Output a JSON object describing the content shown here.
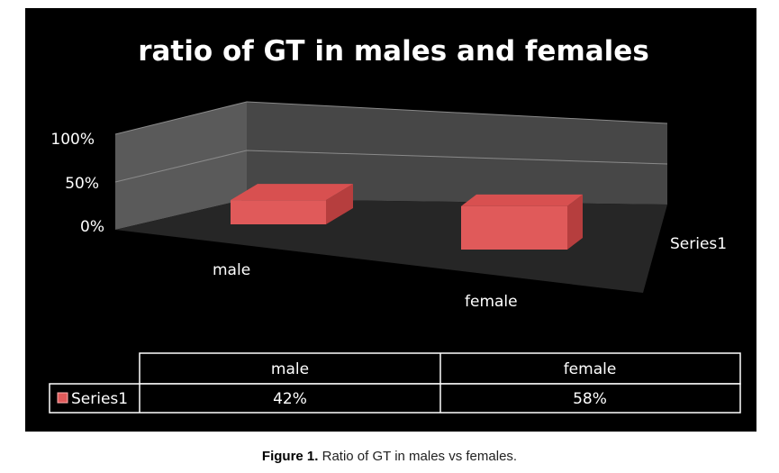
{
  "chart_data": {
    "type": "bar",
    "title": "ratio of GT in males and females",
    "categories": [
      "male",
      "female"
    ],
    "series": [
      {
        "name": "Series1",
        "values": [
          0.42,
          0.58
        ],
        "value_labels": [
          "42%",
          "58%"
        ],
        "color": "#e05a5a"
      }
    ],
    "ylim": [
      0,
      1
    ],
    "yticks": [
      {
        "value": 0,
        "label": "0%"
      },
      {
        "value": 0.5,
        "label": "50%"
      },
      {
        "value": 1,
        "label": "100%"
      }
    ],
    "depth_axis_label": "Series1",
    "grid": true,
    "legend": "data-table",
    "background": "#000000"
  },
  "caption": {
    "label": "Figure 1.",
    "text": " Ratio of GT in males vs females."
  }
}
